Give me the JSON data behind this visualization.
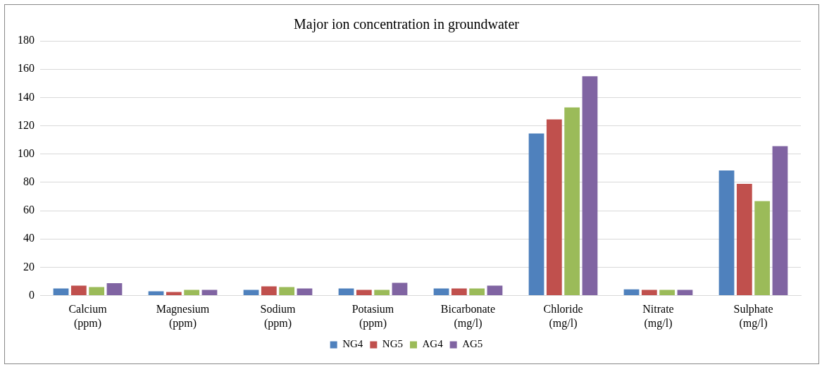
{
  "chart_data": {
    "type": "bar",
    "title": "Major ion concentration in groundwater",
    "categories": [
      "Calcium (ppm)",
      "Magnesium (ppm)",
      "Sodium (ppm)",
      "Potasium (ppm)",
      "Bicarbonate (mg/l)",
      "Chloride (mg/l)",
      "Nitrate (mg/l)",
      "Sulphate (mg/l)"
    ],
    "series": [
      {
        "name": "NG4",
        "color": "#4f81bd",
        "values": [
          5,
          3,
          4,
          5,
          5,
          114.5,
          4.4,
          88.4
        ]
      },
      {
        "name": "NG5",
        "color": "#c0504d",
        "values": [
          7,
          2.5,
          6.5,
          4,
          5,
          124.5,
          4,
          79
        ]
      },
      {
        "name": "AG4",
        "color": "#9bbb59",
        "values": [
          6,
          4,
          6,
          4,
          5,
          133,
          4,
          66.7
        ]
      },
      {
        "name": "AG5",
        "color": "#8064a2",
        "values": [
          8.7,
          4,
          5,
          9,
          7,
          155,
          4,
          105.6
        ]
      }
    ],
    "ylim": [
      0,
      180
    ],
    "yticks": [
      0,
      20,
      40,
      60,
      80,
      100,
      120,
      140,
      160,
      180
    ],
    "grid": "y",
    "legend": "bottom"
  }
}
